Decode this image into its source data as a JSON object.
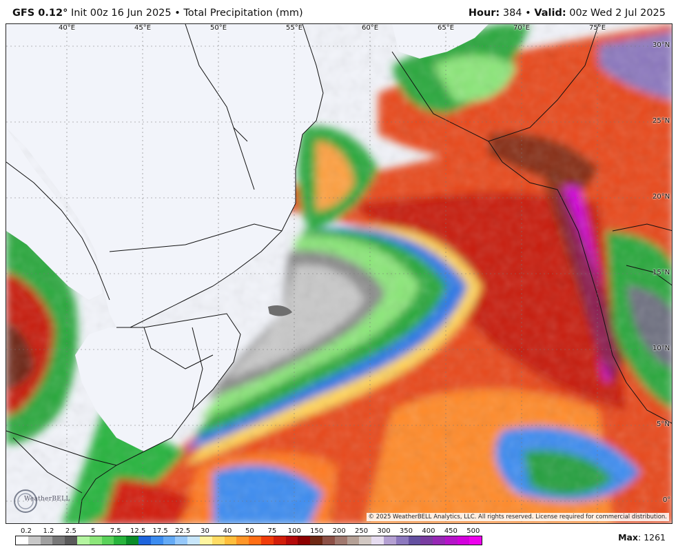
{
  "header": {
    "model": "GFS 0.12",
    "degree": "°",
    "init": "Init 00z 16 Jun 2025",
    "bullet": "•",
    "product": "Total Precipitation (mm)",
    "hour_label": "Hour:",
    "hour_value": "384",
    "valid_label": "Valid:",
    "valid_value": "00z Wed 2 Jul 2025"
  },
  "map": {
    "longitude_labels": [
      "40°E",
      "45°E",
      "50°E",
      "55°E",
      "60°E",
      "65°E",
      "70°E",
      "75°E"
    ],
    "latitude_labels": [
      "30°N",
      "25°N",
      "20°N",
      "15°N",
      "10°N",
      "5°N",
      "0°"
    ],
    "copyright": "© 2025 WeatherBELL Analytics, LLC. All rights reserved. License required for commercial distribution.",
    "logo_text": "WeatherBELL",
    "colors": {
      "land": "#f2f4fa",
      "border": "#111111"
    }
  },
  "legend": {
    "values": [
      "0.2",
      "1.2",
      "2.5",
      "5",
      "7.5",
      "12.5",
      "17.5",
      "22.5",
      "30",
      "40",
      "50",
      "75",
      "100",
      "150",
      "200",
      "250",
      "300",
      "350",
      "400",
      "450",
      "500"
    ],
    "colors": [
      "#ffffff",
      "#c8c8c8",
      "#a0a0a0",
      "#787878",
      "#5a5a5a",
      "#b4f5a0",
      "#8ce67a",
      "#5ad25a",
      "#28b43c",
      "#0a8c28",
      "#1e64dc",
      "#3c8cf0",
      "#64aaf5",
      "#96c8fa",
      "#c8e6fa",
      "#fff5a0",
      "#ffdc64",
      "#ffbe3c",
      "#ff9628",
      "#ff6e14",
      "#f03c0a",
      "#d21e0a",
      "#b40a0a",
      "#8c0000",
      "#6e2814",
      "#8c5046",
      "#a0786e",
      "#b4a096",
      "#d2c8c3",
      "#e6dcf0",
      "#b4a0d2",
      "#8c78be",
      "#6450a0",
      "#783ca0",
      "#9628b4",
      "#b414c8",
      "#d200dc",
      "#ee00ee"
    ]
  },
  "max": {
    "label": "Max",
    "value": "1261"
  }
}
